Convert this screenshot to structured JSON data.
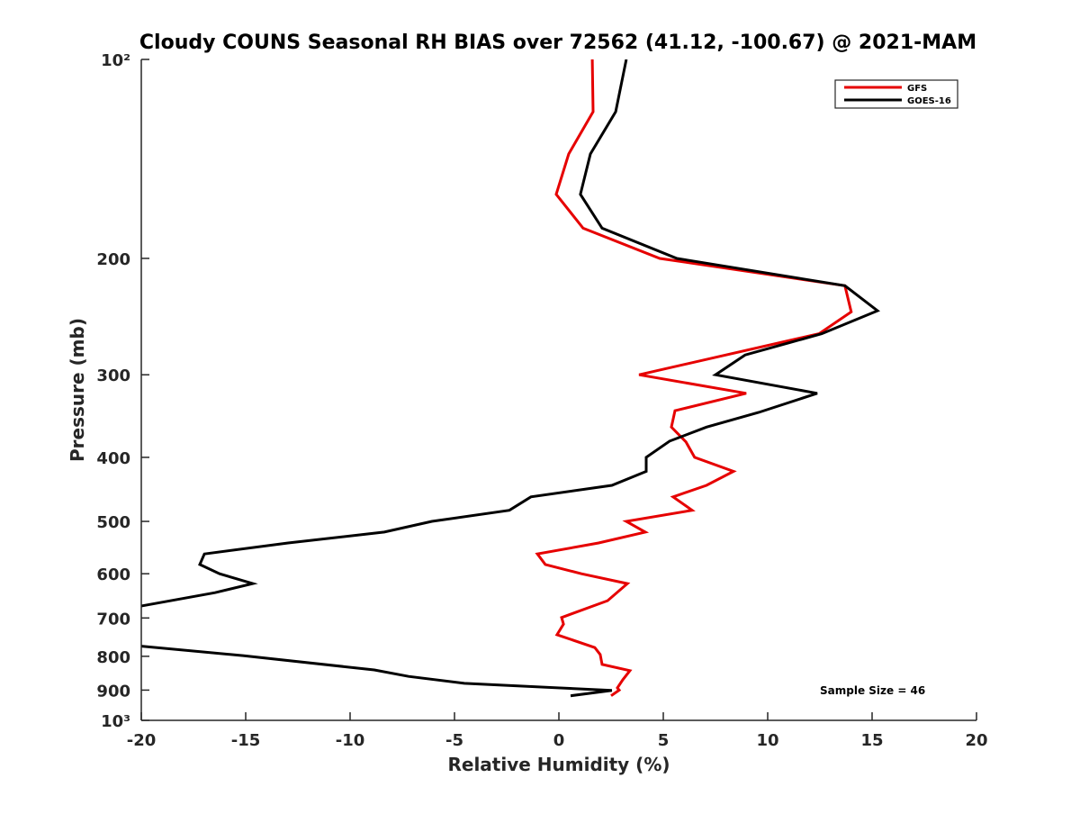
{
  "chart_data": {
    "type": "line",
    "title": "Cloudy COUNS Seasonal RH BIAS over 72562 (41.12, -100.67) @ 2021-MAM",
    "xlabel": "Relative Humidity (%)",
    "ylabel": "Pressure (mb)",
    "xlim": [
      -20,
      20
    ],
    "ylim": [
      100,
      1000
    ],
    "yscale": "log",
    "yreversed": false,
    "xticks": [
      -20,
      -15,
      -10,
      -5,
      0,
      5,
      10,
      15,
      20
    ],
    "xtick_labels": [
      "-20",
      "-15",
      "-10",
      "-5",
      "0",
      "5",
      "10",
      "15",
      "20"
    ],
    "yticks": [
      100,
      200,
      300,
      400,
      500,
      600,
      700,
      800,
      900,
      1000
    ],
    "ytick_labels": [
      "10²",
      "200",
      "300",
      "400",
      "500",
      "600",
      "700",
      "800",
      "900",
      "10³"
    ],
    "legend_position": "top-right",
    "grid": false,
    "annotation": "Sample Size = 46",
    "series": [
      {
        "name": "GFS",
        "color": "#e60000",
        "points": [
          [
            1.6,
            100
          ],
          [
            1.64,
            120
          ],
          [
            0.47,
            139
          ],
          [
            -0.13,
            160
          ],
          [
            1.16,
            180
          ],
          [
            4.83,
            200
          ],
          [
            13.7,
            220
          ],
          [
            14.0,
            241
          ],
          [
            12.46,
            260
          ],
          [
            3.84,
            300
          ],
          [
            8.97,
            320
          ],
          [
            5.56,
            340
          ],
          [
            5.39,
            360
          ],
          [
            6.08,
            379
          ],
          [
            6.5,
            400
          ],
          [
            8.36,
            420
          ],
          [
            7.07,
            441
          ],
          [
            5.47,
            459
          ],
          [
            6.38,
            481
          ],
          [
            3.23,
            500
          ],
          [
            4.14,
            519
          ],
          [
            1.9,
            539
          ],
          [
            -1.03,
            560
          ],
          [
            -0.65,
            581
          ],
          [
            1.08,
            600
          ],
          [
            3.28,
            621
          ],
          [
            2.33,
            659
          ],
          [
            0.13,
            699
          ],
          [
            0.22,
            715
          ],
          [
            -0.09,
            742
          ],
          [
            1.72,
            776
          ],
          [
            1.98,
            795
          ],
          [
            2.07,
            823
          ],
          [
            3.4,
            841
          ],
          [
            3.06,
            868
          ],
          [
            2.8,
            893
          ],
          [
            2.89,
            900
          ],
          [
            2.5,
            918
          ]
        ]
      },
      {
        "name": "GOES-16",
        "color": "#000000",
        "points": [
          [
            3.23,
            100
          ],
          [
            2.72,
            120
          ],
          [
            1.51,
            139
          ],
          [
            1.03,
            160
          ],
          [
            2.07,
            180
          ],
          [
            5.65,
            200
          ],
          [
            13.7,
            220
          ],
          [
            15.26,
            240
          ],
          [
            12.59,
            260
          ],
          [
            8.92,
            280
          ],
          [
            7.5,
            300
          ],
          [
            12.37,
            320
          ],
          [
            9.57,
            342
          ],
          [
            7.07,
            360
          ],
          [
            5.3,
            378
          ],
          [
            4.18,
            400
          ],
          [
            4.18,
            420
          ],
          [
            2.54,
            441
          ],
          [
            -1.34,
            459
          ],
          [
            -2.37,
            481
          ],
          [
            -6.08,
            500
          ],
          [
            -8.36,
            519
          ],
          [
            -12.97,
            539
          ],
          [
            -16.98,
            560
          ],
          [
            -17.2,
            581
          ],
          [
            -16.25,
            600
          ],
          [
            -14.66,
            621
          ],
          [
            -16.47,
            641
          ],
          [
            -20.2,
            673
          ],
          [
            -22,
            710
          ],
          [
            -21,
            750
          ],
          [
            -20.05,
            772
          ],
          [
            -15.13,
            798
          ],
          [
            -8.84,
            839
          ],
          [
            -7.2,
            858
          ],
          [
            -4.53,
            879
          ],
          [
            2.54,
            901
          ],
          [
            0.56,
            918
          ]
        ]
      }
    ]
  }
}
